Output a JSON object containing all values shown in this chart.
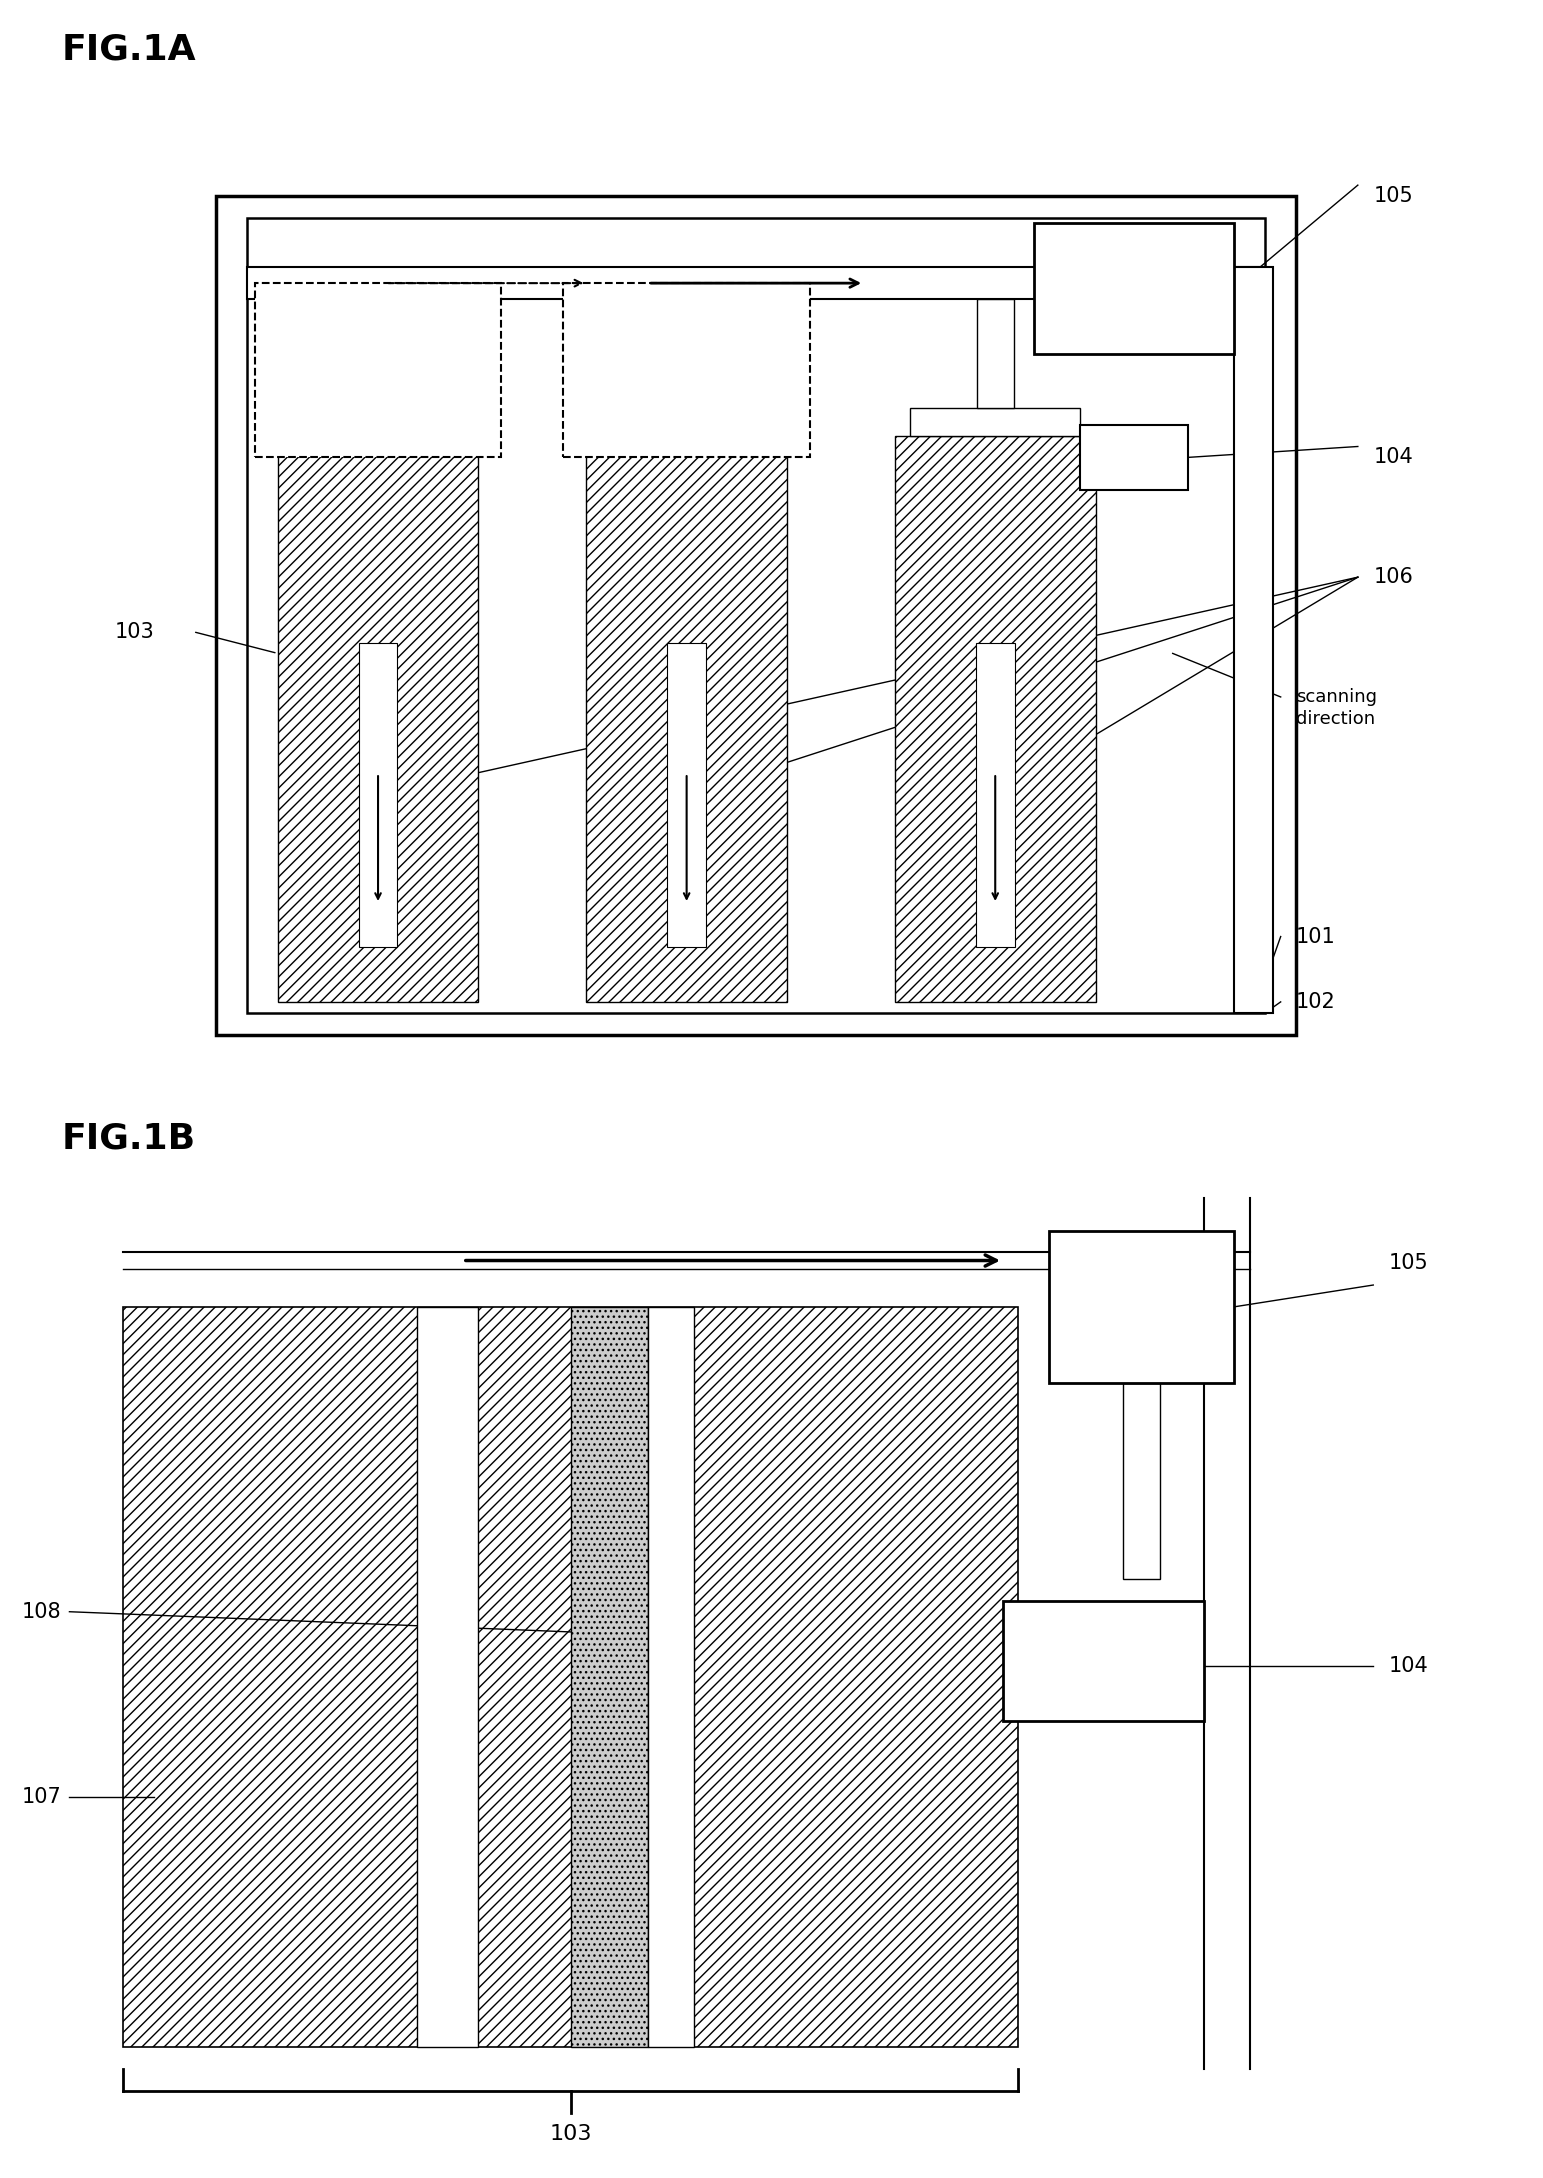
{
  "fig_width": 15.43,
  "fig_height": 21.78,
  "bg_color": "#ffffff",
  "fig1a_title": "FIG.1A",
  "fig1b_title": "FIG.1B",
  "line_color": "#000000"
}
